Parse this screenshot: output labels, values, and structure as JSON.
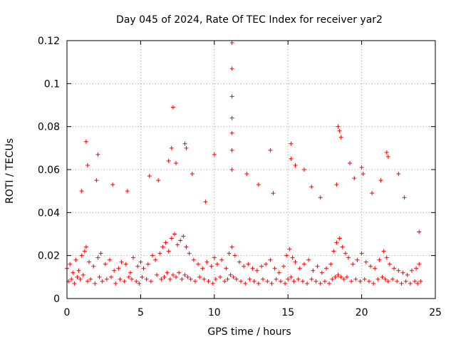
{
  "chart_data": {
    "type": "scatter",
    "title": "Day 045 of 2024, Rate Of TEC Index for receiver yar2",
    "xlabel": "GPS time / hours",
    "ylabel": "ROTI / TECUs",
    "xlim": [
      0,
      25
    ],
    "ylim": [
      0,
      0.12
    ],
    "x_ticks": [
      0,
      5,
      10,
      15,
      20,
      25
    ],
    "x_tick_labels": [
      "0",
      "5",
      "10",
      "15",
      "20",
      "25"
    ],
    "y_ticks": [
      0,
      0.02,
      0.04,
      0.06,
      0.08,
      0.1,
      0.12
    ],
    "y_tick_labels": [
      "0",
      "0.02",
      "0.04",
      "0.06",
      "0.08",
      "0.1",
      "0.12"
    ],
    "grid": true,
    "marker": "+",
    "color": "#ff0000",
    "series": [
      {
        "name": "ROTI",
        "x": [
          0.0,
          0.2,
          0.4,
          0.6,
          0.8,
          1.0,
          1.2,
          1.3,
          1.5,
          1.8,
          2.1,
          2.3,
          2.6,
          2.9,
          3.2,
          3.5,
          3.7,
          4.0,
          4.3,
          4.5,
          4.8,
          5.0,
          5.2,
          5.5,
          5.8,
          6.0,
          6.3,
          6.5,
          6.7,
          6.9,
          7.1,
          7.3,
          7.5,
          7.7,
          7.9,
          8.1,
          8.3,
          8.6,
          8.9,
          9.2,
          9.5,
          9.8,
          10.0,
          10.2,
          10.5,
          10.8,
          11.0,
          11.2,
          11.4,
          11.7,
          12.0,
          12.3,
          12.6,
          12.9,
          13.2,
          13.5,
          13.8,
          14.1,
          14.4,
          14.7,
          14.9,
          15.1,
          15.3,
          15.5,
          15.8,
          16.1,
          16.4,
          16.7,
          17.0,
          17.3,
          17.6,
          17.9,
          18.1,
          18.3,
          18.5,
          18.7,
          18.9,
          19.1,
          19.4,
          19.7,
          20.0,
          20.3,
          20.6,
          20.9,
          21.2,
          21.5,
          21.7,
          21.9,
          22.2,
          22.5,
          22.8,
          23.1,
          23.4,
          23.7,
          23.9,
          0.1,
          0.3,
          0.5,
          0.7,
          0.9,
          1.1,
          1.4,
          1.6,
          1.9,
          2.2,
          2.4,
          2.7,
          3.0,
          3.3,
          3.6,
          3.9,
          4.2,
          4.4,
          4.7,
          4.9,
          5.1,
          5.4,
          5.7,
          6.1,
          6.4,
          6.6,
          6.8,
          7.0,
          7.2,
          7.4,
          7.6,
          7.8,
          8.0,
          8.2,
          8.4,
          8.7,
          9.0,
          9.3,
          9.6,
          9.9,
          10.1,
          10.4,
          10.7,
          10.9,
          11.1,
          11.3,
          11.5,
          11.8,
          12.1,
          12.4,
          12.7,
          13.0,
          13.3,
          13.6,
          13.9,
          14.2,
          14.5,
          14.8,
          15.0,
          15.2,
          15.4,
          15.7,
          16.0,
          16.3,
          16.6,
          16.9,
          17.2,
          17.5,
          17.8,
          18.0,
          18.2,
          18.4,
          18.6,
          18.8,
          19.0,
          19.3,
          19.6,
          19.9,
          20.2,
          20.5,
          20.8,
          21.1,
          21.4,
          21.6,
          21.8,
          22.1,
          22.4,
          22.7,
          23.0,
          23.3,
          23.6,
          23.8,
          24.0,
          1.3,
          1.4,
          2.1,
          6.9,
          7.1,
          7.2,
          7.4,
          8.0,
          8.1,
          10.0,
          11.2,
          11.2,
          11.2,
          11.2,
          11.2,
          11.2,
          11.2,
          13.8,
          15.2,
          15.2,
          15.5,
          16.1,
          18.4,
          18.5,
          18.6,
          19.2,
          20.0,
          20.1,
          21.7,
          21.8,
          22.5,
          23.9,
          1.0,
          2.0,
          3.1,
          4.1,
          5.6,
          6.2,
          8.5,
          9.4,
          12.2,
          13.0,
          14.0,
          16.6,
          17.2,
          18.3,
          19.5,
          20.7,
          21.3,
          22.9
        ],
        "y": [
          0.014,
          0.016,
          0.012,
          0.018,
          0.013,
          0.02,
          0.022,
          0.024,
          0.017,
          0.015,
          0.019,
          0.021,
          0.016,
          0.018,
          0.013,
          0.014,
          0.017,
          0.016,
          0.012,
          0.019,
          0.015,
          0.017,
          0.014,
          0.016,
          0.02,
          0.018,
          0.021,
          0.024,
          0.026,
          0.022,
          0.028,
          0.03,
          0.025,
          0.027,
          0.029,
          0.024,
          0.021,
          0.018,
          0.016,
          0.014,
          0.017,
          0.015,
          0.019,
          0.016,
          0.018,
          0.014,
          0.021,
          0.024,
          0.02,
          0.017,
          0.015,
          0.016,
          0.014,
          0.013,
          0.015,
          0.016,
          0.018,
          0.014,
          0.012,
          0.015,
          0.02,
          0.023,
          0.019,
          0.017,
          0.014,
          0.016,
          0.018,
          0.013,
          0.015,
          0.012,
          0.014,
          0.016,
          0.022,
          0.026,
          0.028,
          0.024,
          0.021,
          0.019,
          0.016,
          0.018,
          0.021,
          0.017,
          0.015,
          0.014,
          0.018,
          0.022,
          0.019,
          0.016,
          0.014,
          0.013,
          0.012,
          0.011,
          0.013,
          0.014,
          0.016,
          0.008,
          0.009,
          0.007,
          0.01,
          0.009,
          0.011,
          0.008,
          0.009,
          0.007,
          0.01,
          0.008,
          0.009,
          0.01,
          0.007,
          0.009,
          0.008,
          0.01,
          0.009,
          0.008,
          0.007,
          0.01,
          0.009,
          0.008,
          0.011,
          0.009,
          0.01,
          0.012,
          0.009,
          0.011,
          0.01,
          0.012,
          0.009,
          0.011,
          0.01,
          0.009,
          0.008,
          0.01,
          0.009,
          0.008,
          0.007,
          0.009,
          0.01,
          0.008,
          0.009,
          0.011,
          0.01,
          0.009,
          0.008,
          0.007,
          0.009,
          0.008,
          0.007,
          0.009,
          0.008,
          0.007,
          0.009,
          0.008,
          0.007,
          0.009,
          0.01,
          0.008,
          0.009,
          0.008,
          0.007,
          0.009,
          0.008,
          0.007,
          0.008,
          0.007,
          0.009,
          0.01,
          0.011,
          0.01,
          0.009,
          0.01,
          0.008,
          0.009,
          0.008,
          0.009,
          0.008,
          0.007,
          0.009,
          0.01,
          0.009,
          0.008,
          0.009,
          0.008,
          0.007,
          0.008,
          0.007,
          0.008,
          0.007,
          0.008,
          0.073,
          0.062,
          0.067,
          0.064,
          0.07,
          0.089,
          0.063,
          0.072,
          0.07,
          0.067,
          0.119,
          0.107,
          0.094,
          0.084,
          0.077,
          0.069,
          0.06,
          0.069,
          0.072,
          0.065,
          0.062,
          0.06,
          0.08,
          0.078,
          0.075,
          0.063,
          0.061,
          0.058,
          0.068,
          0.066,
          0.058,
          0.031,
          0.05,
          0.055,
          0.053,
          0.05,
          0.057,
          0.055,
          0.058,
          0.045,
          0.058,
          0.053,
          0.049,
          0.052,
          0.047,
          0.053,
          0.056,
          0.049,
          0.055,
          0.047
        ]
      }
    ]
  }
}
